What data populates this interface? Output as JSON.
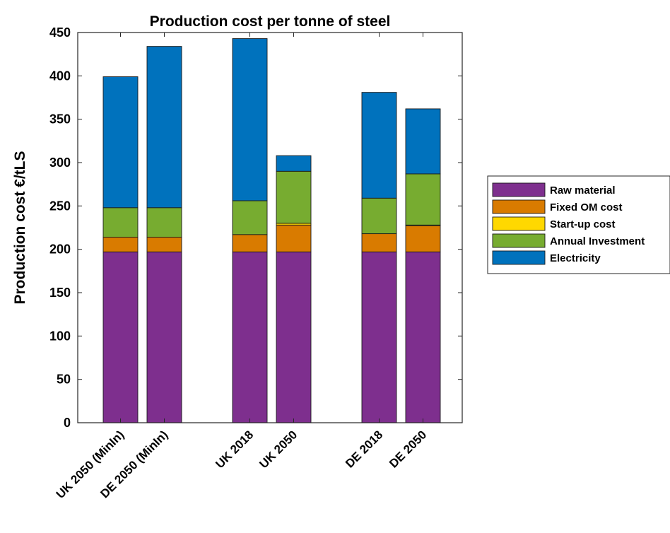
{
  "chart_data": {
    "type": "bar",
    "stacked": true,
    "title": "Production cost per tonne of steel",
    "xlabel": "",
    "ylabel": "Production cost €/tLS",
    "ylim": [
      0,
      450
    ],
    "yticks": [
      0,
      50,
      100,
      150,
      200,
      250,
      300,
      350,
      400,
      450
    ],
    "categories": [
      "UK 2050 (MinIn)",
      "DE 2050 (MinIn)",
      "UK 2018",
      "UK 2050",
      "DE 2018",
      "DE 2050"
    ],
    "groups": [
      [
        0,
        1
      ],
      [
        2,
        3
      ],
      [
        4,
        5
      ]
    ],
    "grid": false,
    "legend_position": "right",
    "series": [
      {
        "name": "Raw material",
        "color": "#7e2f8e",
        "values": [
          197,
          197,
          197,
          197,
          197,
          197
        ]
      },
      {
        "name": "Fixed OM cost",
        "color": "#d97b00",
        "values": [
          17,
          17,
          20,
          31,
          21,
          30
        ]
      },
      {
        "name": "Start-up cost",
        "color": "#ffd800",
        "values": [
          0,
          0,
          0,
          2,
          0,
          1
        ]
      },
      {
        "name": "Annual Investment",
        "color": "#77ac30",
        "values": [
          34,
          34,
          39,
          60,
          41,
          59
        ]
      },
      {
        "name": "Electricity",
        "color": "#0072bd",
        "values": [
          151,
          186,
          187,
          18,
          122,
          75
        ]
      }
    ]
  }
}
